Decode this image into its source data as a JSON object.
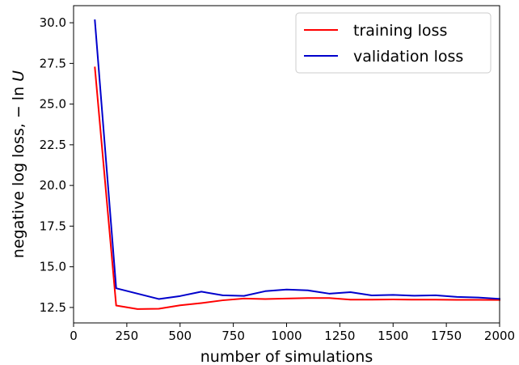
{
  "chart_data": {
    "type": "line",
    "title": "",
    "xlabel": "number of simulations",
    "ylabel_prefix": "negative log loss, − ln ",
    "ylabel_var": "U",
    "xlim": [
      0,
      2000
    ],
    "ylim": [
      11.55,
      31.05
    ],
    "xticks": [
      0,
      250,
      500,
      750,
      1000,
      1250,
      1500,
      1750,
      2000
    ],
    "xtick_labels": [
      "0",
      "250",
      "500",
      "750",
      "1000",
      "1250",
      "1500",
      "1750",
      "2000"
    ],
    "yticks": [
      12.5,
      15.0,
      17.5,
      20.0,
      22.5,
      25.0,
      27.5,
      30.0
    ],
    "ytick_labels": [
      "12.5",
      "15.0",
      "17.5",
      "20.0",
      "22.5",
      "25.0",
      "27.5",
      "30.0"
    ],
    "grid": false,
    "legend_position": "top-right",
    "x": [
      100,
      200,
      300,
      400,
      500,
      600,
      700,
      800,
      900,
      1000,
      1100,
      1200,
      1300,
      1400,
      1500,
      1600,
      1700,
      1800,
      1900,
      2000
    ],
    "series": [
      {
        "name": "training loss",
        "color": "#ff0000",
        "values": [
          27.25,
          12.62,
          12.4,
          12.42,
          12.63,
          12.77,
          12.94,
          13.05,
          13.02,
          13.05,
          13.08,
          13.08,
          12.98,
          12.98,
          12.99,
          12.98,
          12.98,
          12.97,
          12.97,
          12.96
        ]
      },
      {
        "name": "validation loss",
        "color": "#0000cc",
        "values": [
          30.15,
          13.68,
          13.35,
          13.02,
          13.2,
          13.47,
          13.25,
          13.21,
          13.5,
          13.6,
          13.55,
          13.35,
          13.44,
          13.24,
          13.27,
          13.22,
          13.25,
          13.15,
          13.11,
          13.03
        ]
      }
    ]
  }
}
